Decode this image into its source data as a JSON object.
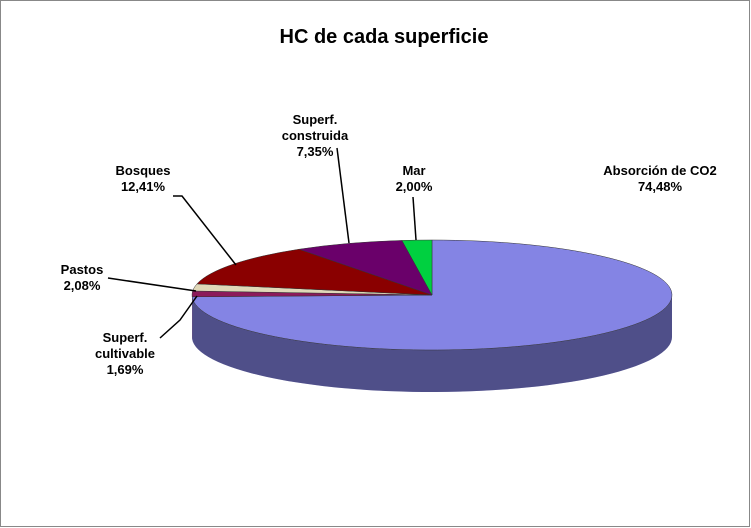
{
  "chart_data": {
    "type": "pie",
    "title": "HC de cada superficie",
    "categories": [
      "Absorción de CO2",
      "Superf. cultivable",
      "Pastos",
      "Bosques",
      "Superf. construida",
      "Mar"
    ],
    "values": [
      74.48,
      1.69,
      2.08,
      12.41,
      7.35,
      2.0
    ],
    "value_labels": [
      "74,48%",
      "1,69%",
      "2,08%",
      "12,41%",
      "7,35%",
      "2,00%"
    ],
    "colors": [
      "#8484e4",
      "#8c1a5a",
      "#e0d8b8",
      "#8a0000",
      "#6a006a",
      "#00d040"
    ]
  }
}
